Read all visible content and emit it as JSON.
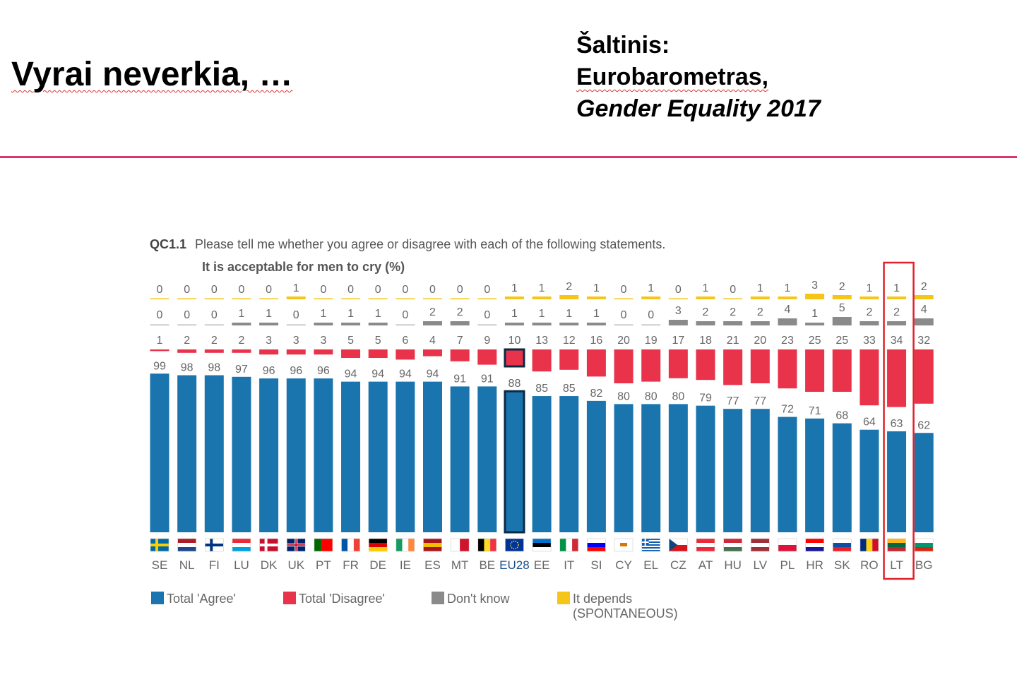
{
  "slide": {
    "title": "Vyrai neverkia, …",
    "source_line1": "Šaltinis:",
    "source_line2": "Eurobarometras,",
    "source_line3": "Gender Equality 2017"
  },
  "chart_data": {
    "type": "bar",
    "question_code": "QC1.1",
    "question": "Please tell me whether you agree or disagree with each of the following statements.",
    "subtitle": "It is acceptable for men to cry (%)",
    "categories": [
      "SE",
      "NL",
      "FI",
      "LU",
      "DK",
      "UK",
      "PT",
      "FR",
      "DE",
      "IE",
      "ES",
      "MT",
      "BE",
      "EU28",
      "EE",
      "IT",
      "SI",
      "CY",
      "EL",
      "CZ",
      "AT",
      "HU",
      "LV",
      "PL",
      "HR",
      "SK",
      "RO",
      "LT",
      "BG"
    ],
    "highlighted_category": "LT",
    "series": [
      {
        "name": "Total 'Agree'",
        "color": "#1a74ad",
        "values": [
          99,
          98,
          98,
          97,
          96,
          96,
          96,
          94,
          94,
          94,
          94,
          91,
          91,
          88,
          85,
          85,
          82,
          80,
          80,
          80,
          79,
          77,
          77,
          72,
          71,
          68,
          64,
          63,
          62
        ]
      },
      {
        "name": "Total 'Disagree'",
        "color": "#e8334a",
        "values": [
          1,
          2,
          2,
          2,
          3,
          3,
          3,
          5,
          5,
          6,
          4,
          7,
          9,
          10,
          13,
          12,
          16,
          20,
          19,
          17,
          18,
          21,
          20,
          23,
          25,
          25,
          33,
          34,
          32
        ]
      },
      {
        "name": "Don't know",
        "color": "#8a8a8a",
        "values": [
          0,
          0,
          0,
          1,
          1,
          0,
          1,
          1,
          1,
          0,
          2,
          2,
          0,
          1,
          1,
          1,
          1,
          0,
          0,
          3,
          2,
          2,
          2,
          4,
          1,
          5,
          2,
          2,
          4
        ]
      },
      {
        "name": "It depends",
        "name_line2": "(SPONTANEOUS)",
        "color": "#f5c518",
        "values": [
          0,
          0,
          0,
          0,
          0,
          1,
          0,
          0,
          0,
          0,
          0,
          0,
          0,
          1,
          1,
          2,
          1,
          0,
          1,
          0,
          1,
          0,
          1,
          1,
          3,
          2,
          1,
          1,
          2
        ]
      }
    ]
  }
}
